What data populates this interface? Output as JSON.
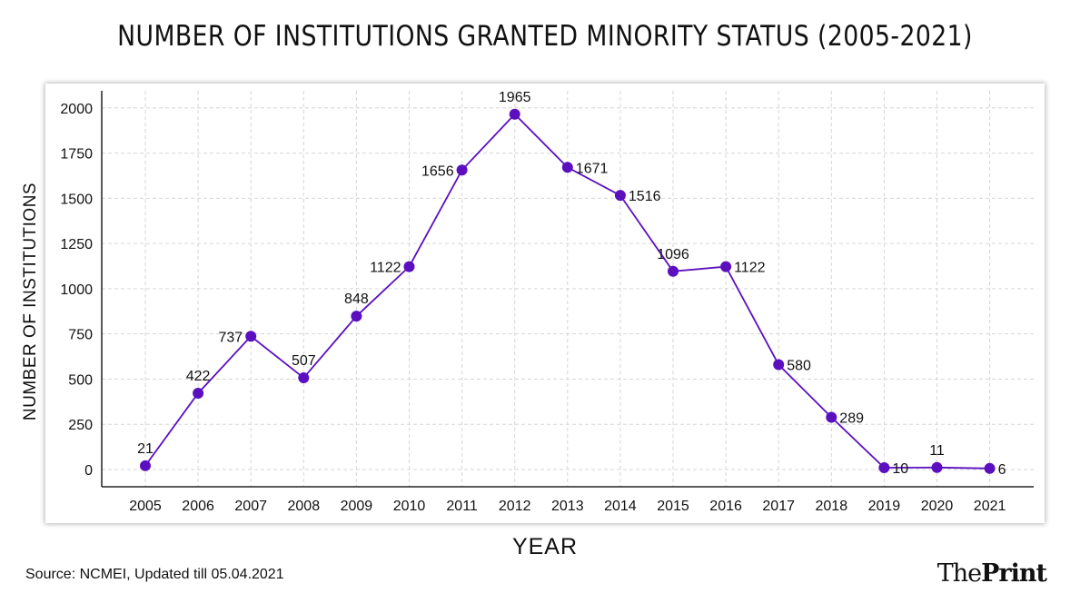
{
  "title": "NUMBER OF INSTITUTIONS GRANTED MINORITY STATUS (2005-2021)",
  "source": "Source: NCMEI, Updated till 05.04.2021",
  "logo": {
    "part1": "The",
    "part2": "Print"
  },
  "colors": {
    "line": "#5b0fbf",
    "grid": "#d6d6d6",
    "axis": "#222222"
  },
  "chart_data": {
    "type": "line",
    "xlabel": "YEAR",
    "ylabel": "NUMBER OF INSTITUTIONS",
    "x": [
      "2005",
      "2006",
      "2007",
      "2008",
      "2009",
      "2010",
      "2011",
      "2012",
      "2013",
      "2014",
      "2015",
      "2016",
      "2017",
      "2018",
      "2019",
      "2020",
      "2021"
    ],
    "series": [
      {
        "values": [
          21,
          422,
          737,
          507,
          848,
          1122,
          1656,
          1965,
          1671,
          1516,
          1096,
          1122,
          580,
          289,
          10,
          11,
          6
        ]
      }
    ],
    "ylim": [
      0,
      2000
    ],
    "yticks": [
      "0",
      "250",
      "500",
      "750",
      "1000",
      "1250",
      "1500",
      "1750",
      "2000"
    ],
    "data_labels": [
      "21",
      "422",
      "737",
      "507",
      "848",
      "1122",
      "1656",
      "1965",
      "1671",
      "1516",
      "1096",
      "1122",
      "580",
      "289",
      "10",
      "11",
      "6"
    ],
    "label_position": [
      "above",
      "above",
      "left",
      "above",
      "above",
      "left",
      "left",
      "above",
      "right",
      "right",
      "above",
      "right",
      "right",
      "right",
      "right",
      "above",
      "right"
    ],
    "grid": true,
    "marker": "circle"
  }
}
